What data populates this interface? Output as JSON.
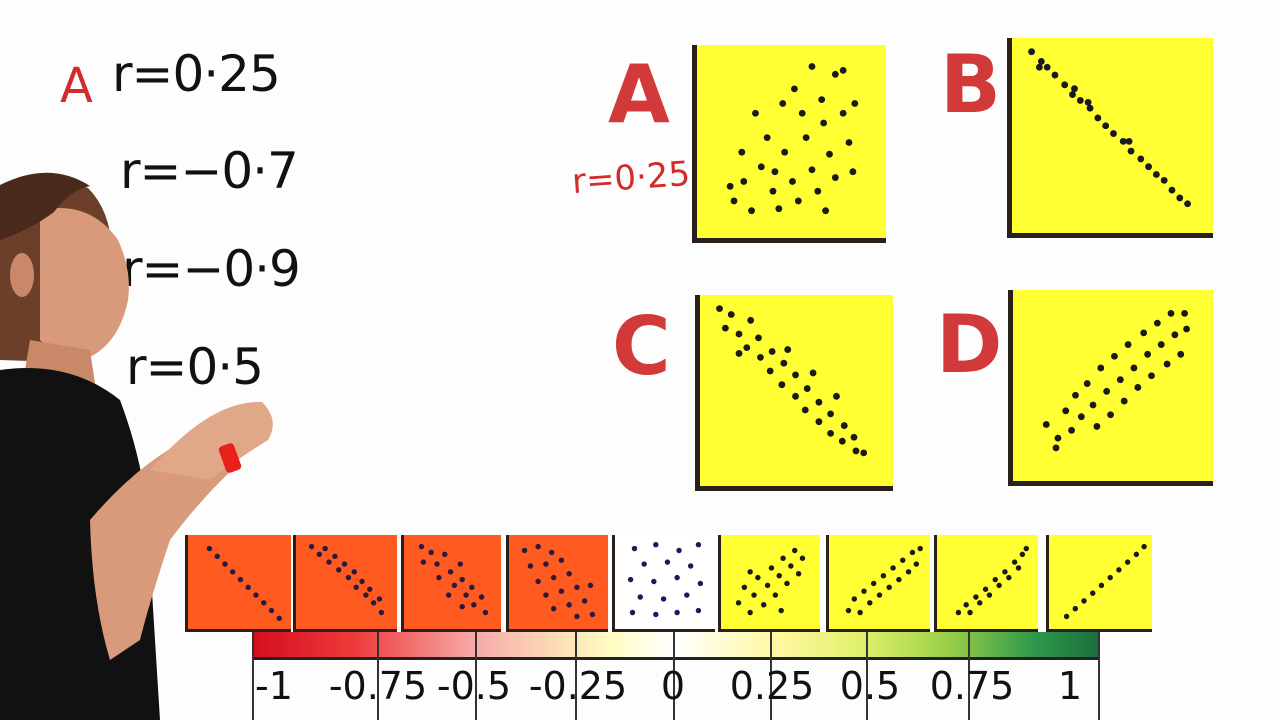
{
  "board": {
    "left_equations": [
      {
        "letter": "A",
        "text": "r=0·25"
      },
      {
        "letter": "",
        "text": "r=−0·7"
      },
      {
        "letter": "",
        "text": "r=−0·9"
      },
      {
        "letter": "",
        "text": "r=0·5"
      }
    ],
    "plot_a_annotation": "r=0·25",
    "plots": [
      {
        "label": "A"
      },
      {
        "label": "B"
      },
      {
        "label": "C"
      },
      {
        "label": "D"
      }
    ],
    "scale": {
      "ticks": [
        "-1",
        "-0.75",
        "-0.5",
        "-0.25",
        "0",
        "0.25",
        "0.5",
        "0.75",
        "1"
      ]
    },
    "colors": {
      "board": "#fdfdfd",
      "plot_fill": "#ffff33",
      "negative_fill": "#ff5a1f",
      "zero_fill": "#ffffff",
      "positive_fill": "#ffff33",
      "marker_red": "#d23a3a",
      "dot": "#1a1a1a"
    }
  }
}
